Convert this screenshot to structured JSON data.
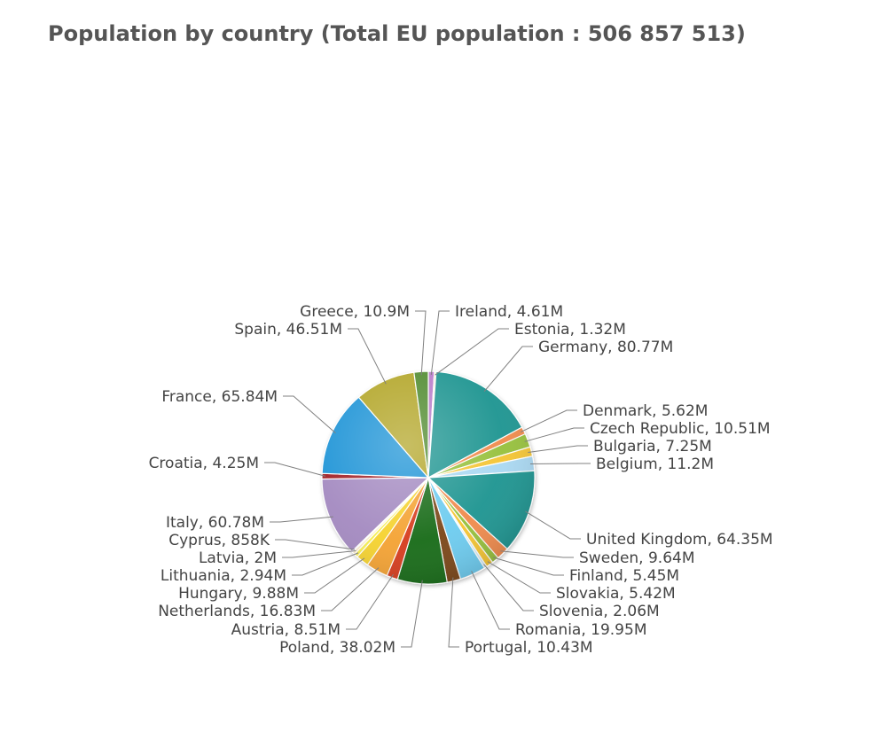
{
  "title": "Population by country (Total EU population : 506 857 513)",
  "chart_data": {
    "type": "pie",
    "title": "Population by country (Total EU population : 506 857 513)",
    "slices": [
      {
        "name": "Ireland",
        "value": 4.61,
        "label": "Ireland, 4.61M",
        "color": "#b77ac9"
      },
      {
        "name": "Estonia",
        "value": 1.32,
        "label": "Estonia, 1.32M",
        "color": "#e2d9a8"
      },
      {
        "name": "Germany",
        "value": 80.77,
        "label": "Germany, 80.77M",
        "color": "#1a9490"
      },
      {
        "name": "Denmark",
        "value": 5.62,
        "label": "Denmark, 5.62M",
        "color": "#f08a4b"
      },
      {
        "name": "Czech Republic",
        "value": 10.51,
        "label": "Czech Republic, 10.51M",
        "color": "#96c03a"
      },
      {
        "name": "Bulgaria",
        "value": 7.25,
        "label": "Bulgaria, 7.25M",
        "color": "#f4c431"
      },
      {
        "name": "Belgium",
        "value": 11.2,
        "label": "Belgium, 11.2M",
        "color": "#a9d8f2"
      },
      {
        "name": "United Kingdom",
        "value": 64.35,
        "label": "United Kingdom, 64.35M",
        "color": "#1a9490"
      },
      {
        "name": "Sweden",
        "value": 9.64,
        "label": "Sweden, 9.64M",
        "color": "#f08a4b"
      },
      {
        "name": "Finland",
        "value": 5.45,
        "label": "Finland, 5.45M",
        "color": "#96c03a"
      },
      {
        "name": "Slovakia",
        "value": 5.42,
        "label": "Slovakia, 5.42M",
        "color": "#f4c431"
      },
      {
        "name": "Slovenia",
        "value": 2.06,
        "label": "Slovenia, 2.06M",
        "color": "#cde9f7"
      },
      {
        "name": "Romania",
        "value": 19.95,
        "label": "Romania, 19.95M",
        "color": "#6ccbef"
      },
      {
        "name": "Portugal",
        "value": 10.43,
        "label": "Portugal, 10.43M",
        "color": "#7a4419"
      },
      {
        "name": "Poland",
        "value": 38.02,
        "label": "Poland, 38.02M",
        "color": "#146b14"
      },
      {
        "name": "Austria",
        "value": 8.51,
        "label": "Austria, 8.51M",
        "color": "#d63b1f"
      },
      {
        "name": "Netherlands",
        "value": 16.83,
        "label": "Netherlands, 16.83M",
        "color": "#f4a233"
      },
      {
        "name": "Hungary",
        "value": 9.88,
        "label": "Hungary, 9.88M",
        "color": "#f5d22f"
      },
      {
        "name": "Lithuania",
        "value": 2.94,
        "label": "Lithuania, 2.94M",
        "color": "#f5ee52"
      },
      {
        "name": "Latvia",
        "value": 2.0,
        "label": "Latvia, 2M",
        "color": "#fbe9c2"
      },
      {
        "name": "Cyprus",
        "value": 0.858,
        "label": "Cyprus, 858K",
        "color": "#c7a7d8"
      },
      {
        "name": "Italy",
        "value": 60.78,
        "label": "Italy, 60.78M",
        "color": "#a389c0"
      },
      {
        "name": "Croatia",
        "value": 4.25,
        "label": "Croatia, 4.25M",
        "color": "#a01c22"
      },
      {
        "name": "France",
        "value": 65.84,
        "label": "France, 65.84M",
        "color": "#1d93d6"
      },
      {
        "name": "Spain",
        "value": 46.51,
        "label": "Spain, 46.51M",
        "color": "#b2a526"
      },
      {
        "name": "Greece",
        "value": 10.9,
        "label": "Greece, 10.9M",
        "color": "#4f8a2d"
      }
    ],
    "legend": "none",
    "grid": false
  }
}
